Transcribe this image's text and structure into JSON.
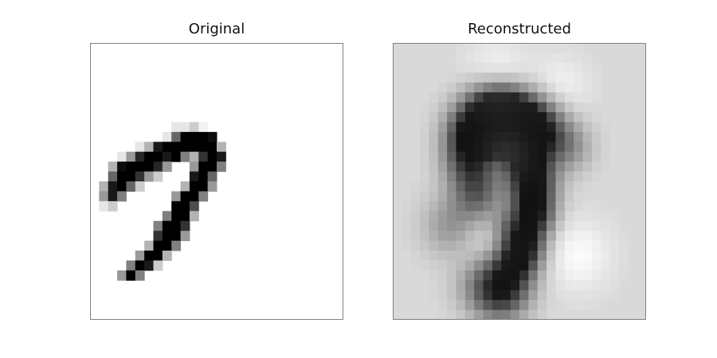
{
  "chart_data": [
    {
      "type": "heatmap",
      "title": "Original",
      "grid": false,
      "colormap": "gray_r",
      "rows": 28,
      "cols": 28,
      "cells": [
        [
          9,
          12,
          0.1
        ],
        [
          10,
          12,
          0.1
        ],
        [
          11,
          12,
          0.2
        ],
        [
          12,
          12,
          0.05
        ],
        [
          8,
          13,
          0.1
        ],
        [
          9,
          13,
          0.6
        ],
        [
          10,
          13,
          1
        ],
        [
          11,
          13,
          1
        ],
        [
          12,
          13,
          1
        ],
        [
          13,
          13,
          0.95
        ],
        [
          5,
          14,
          0.1
        ],
        [
          6,
          14,
          0.3
        ],
        [
          7,
          14,
          0.9
        ],
        [
          8,
          14,
          1
        ],
        [
          9,
          14,
          1
        ],
        [
          10,
          14,
          1
        ],
        [
          11,
          14,
          1
        ],
        [
          12,
          14,
          1
        ],
        [
          13,
          14,
          1
        ],
        [
          14,
          14,
          0.3
        ],
        [
          3,
          15,
          0.1
        ],
        [
          4,
          15,
          0.4
        ],
        [
          5,
          15,
          0.85
        ],
        [
          6,
          15,
          1
        ],
        [
          7,
          15,
          1
        ],
        [
          8,
          15,
          0.9
        ],
        [
          9,
          15,
          1
        ],
        [
          10,
          15,
          0.5
        ],
        [
          11,
          15,
          0.3
        ],
        [
          12,
          15,
          0.8
        ],
        [
          13,
          15,
          1
        ],
        [
          14,
          15,
          0.9
        ],
        [
          2,
          16,
          0.3
        ],
        [
          3,
          16,
          0.95
        ],
        [
          4,
          16,
          1
        ],
        [
          5,
          16,
          1
        ],
        [
          6,
          16,
          1
        ],
        [
          7,
          16,
          0.85
        ],
        [
          8,
          16,
          0.4
        ],
        [
          11,
          16,
          0.4
        ],
        [
          12,
          16,
          1
        ],
        [
          13,
          16,
          1
        ],
        [
          14,
          16,
          0.5
        ],
        [
          2,
          17,
          0.6
        ],
        [
          3,
          17,
          1
        ],
        [
          4,
          17,
          1
        ],
        [
          5,
          17,
          0.8
        ],
        [
          6,
          17,
          0.4
        ],
        [
          7,
          17,
          0.2
        ],
        [
          11,
          17,
          0.9
        ],
        [
          12,
          17,
          1
        ],
        [
          13,
          17,
          0.6
        ],
        [
          1,
          18,
          0.3
        ],
        [
          2,
          18,
          0.9
        ],
        [
          3,
          18,
          1
        ],
        [
          4,
          18,
          0.6
        ],
        [
          5,
          18,
          0.2
        ],
        [
          10,
          18,
          0.3
        ],
        [
          11,
          18,
          1
        ],
        [
          12,
          18,
          1
        ],
        [
          13,
          18,
          0.4
        ],
        [
          1,
          19,
          0.4
        ],
        [
          2,
          19,
          0.9
        ],
        [
          3,
          19,
          0.5
        ],
        [
          9,
          19,
          0.4
        ],
        [
          10,
          19,
          1
        ],
        [
          11,
          19,
          1
        ],
        [
          12,
          19,
          0.5
        ],
        [
          1,
          20,
          0.1
        ],
        [
          2,
          20,
          0.2
        ],
        [
          9,
          20,
          1
        ],
        [
          10,
          20,
          1
        ],
        [
          11,
          20,
          0.7
        ],
        [
          8,
          21,
          0.5
        ],
        [
          9,
          21,
          1
        ],
        [
          10,
          21,
          1
        ],
        [
          11,
          21,
          0.3
        ],
        [
          7,
          22,
          0.5
        ],
        [
          8,
          22,
          1
        ],
        [
          9,
          22,
          1
        ],
        [
          10,
          22,
          0.8
        ],
        [
          7,
          23,
          0.8
        ],
        [
          8,
          23,
          1
        ],
        [
          9,
          23,
          1
        ],
        [
          10,
          23,
          0.4
        ],
        [
          6,
          24,
          0.3
        ],
        [
          7,
          24,
          1
        ],
        [
          8,
          24,
          1
        ],
        [
          9,
          24,
          0.5
        ],
        [
          5,
          25,
          0.4
        ],
        [
          6,
          25,
          1
        ],
        [
          7,
          25,
          1
        ],
        [
          8,
          25,
          0.3
        ],
        [
          4,
          26,
          0.5
        ],
        [
          5,
          26,
          1
        ],
        [
          6,
          26,
          0.9
        ],
        [
          7,
          26,
          0.2
        ],
        [
          3,
          27,
          0.4
        ],
        [
          4,
          27,
          1
        ],
        [
          5,
          27,
          0.5
        ]
      ]
    },
    {
      "type": "heatmap",
      "title": "Reconstructed",
      "grid": false,
      "colormap": "gray_r",
      "rows": 28,
      "cols": 28,
      "cells": []
    }
  ]
}
